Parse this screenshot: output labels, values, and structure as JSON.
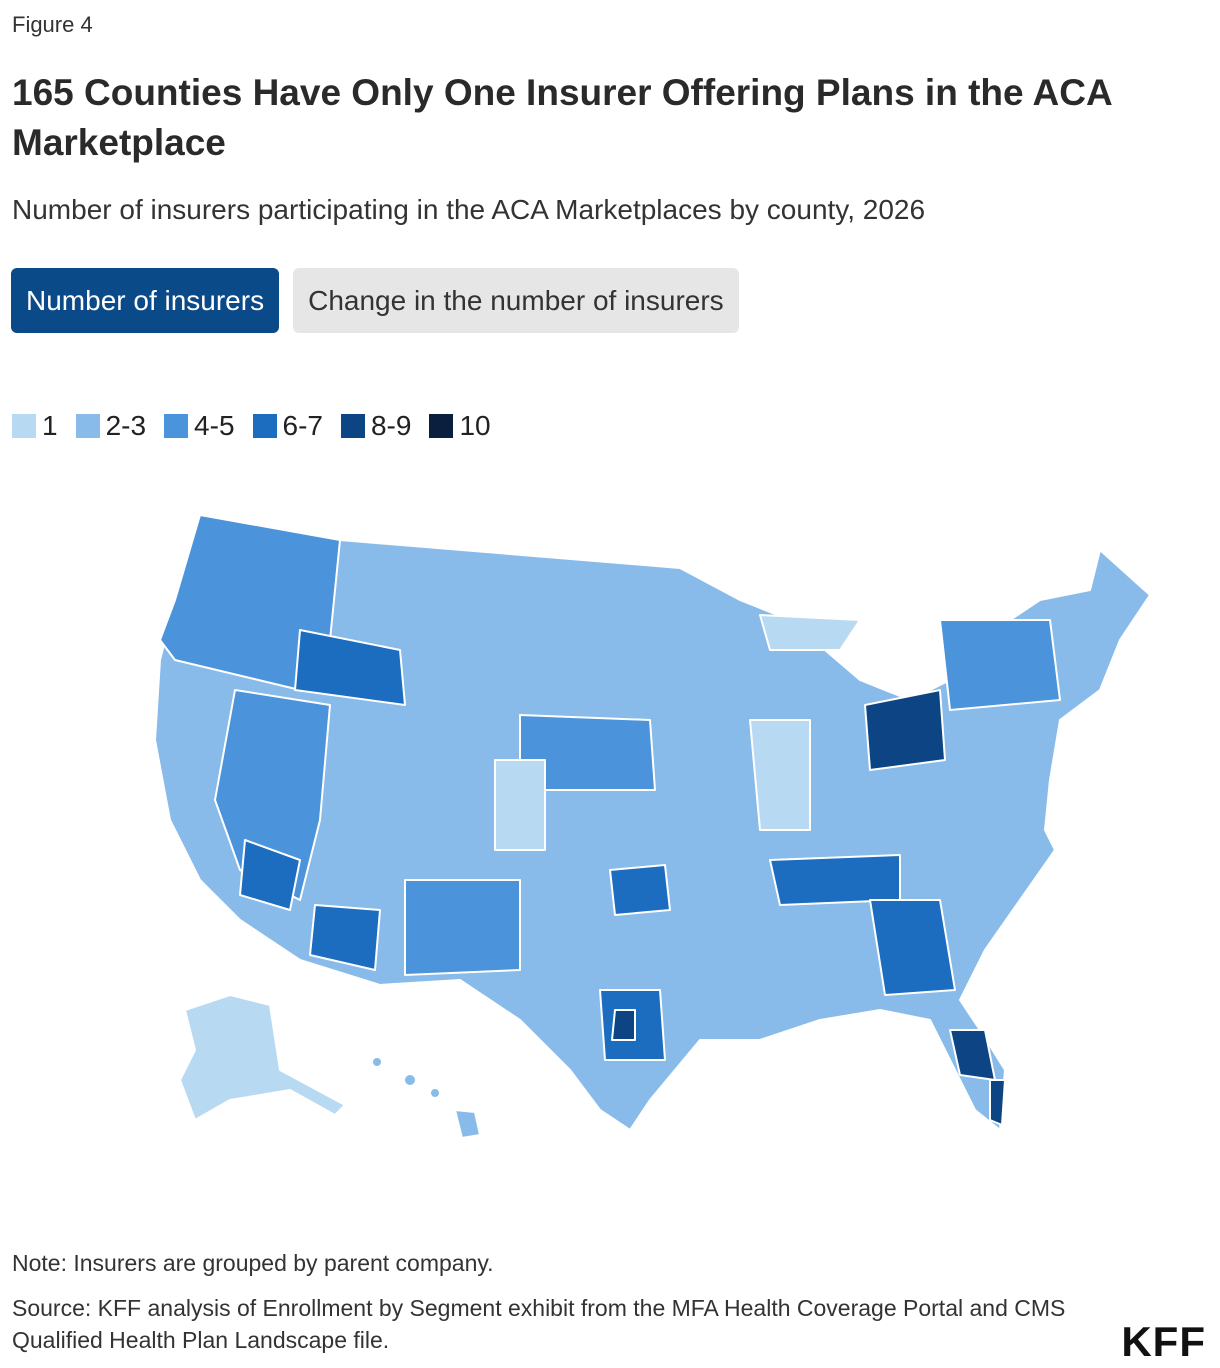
{
  "figure_label": "Figure 4",
  "title": "165 Counties Have Only One Insurer Offering Plans in the ACA Marketplace",
  "subtitle": "Number of insurers participating in the ACA Marketplaces by county, 2026",
  "tabs": [
    "Number of insurers",
    "Change in the number of insurers"
  ],
  "legend": [
    {
      "label": "1",
      "color": "#b8d9f2"
    },
    {
      "label": "2-3",
      "color": "#88bbe9"
    },
    {
      "label": "4-5",
      "color": "#4b93db"
    },
    {
      "label": "6-7",
      "color": "#1c6cc0"
    },
    {
      "label": "8-9",
      "color": "#0d4483"
    },
    {
      "label": "10",
      "color": "#0a1f3d"
    }
  ],
  "note": "Note: Insurers are grouped by parent company.",
  "source": "Source: KFF analysis of Enrollment by Segment exhibit from the MFA Health Coverage Portal and CMS Qualified Health Plan Landscape file.",
  "logo": "KFF"
}
